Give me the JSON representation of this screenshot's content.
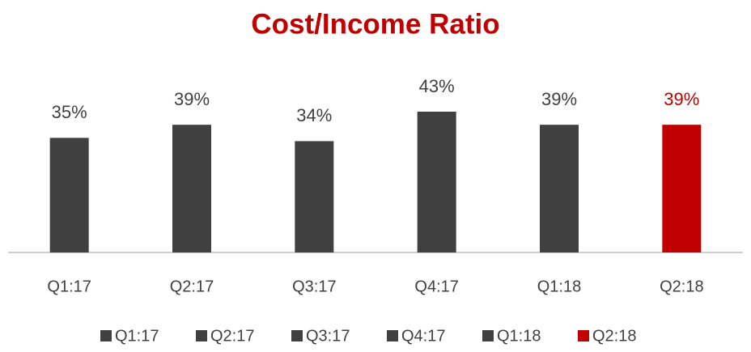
{
  "chart_data": {
    "type": "bar",
    "title": "Cost/Income Ratio",
    "categories": [
      "Q1:17",
      "Q2:17",
      "Q3:17",
      "Q4:17",
      "Q1:18",
      "Q2:18"
    ],
    "values": [
      35,
      39,
      34,
      43,
      39,
      39
    ],
    "value_labels": [
      "35%",
      "39%",
      "34%",
      "43%",
      "39%",
      "39%"
    ],
    "colors": [
      "#404040",
      "#404040",
      "#404040",
      "#404040",
      "#404040",
      "#c00000"
    ],
    "legend": "bottom"
  }
}
